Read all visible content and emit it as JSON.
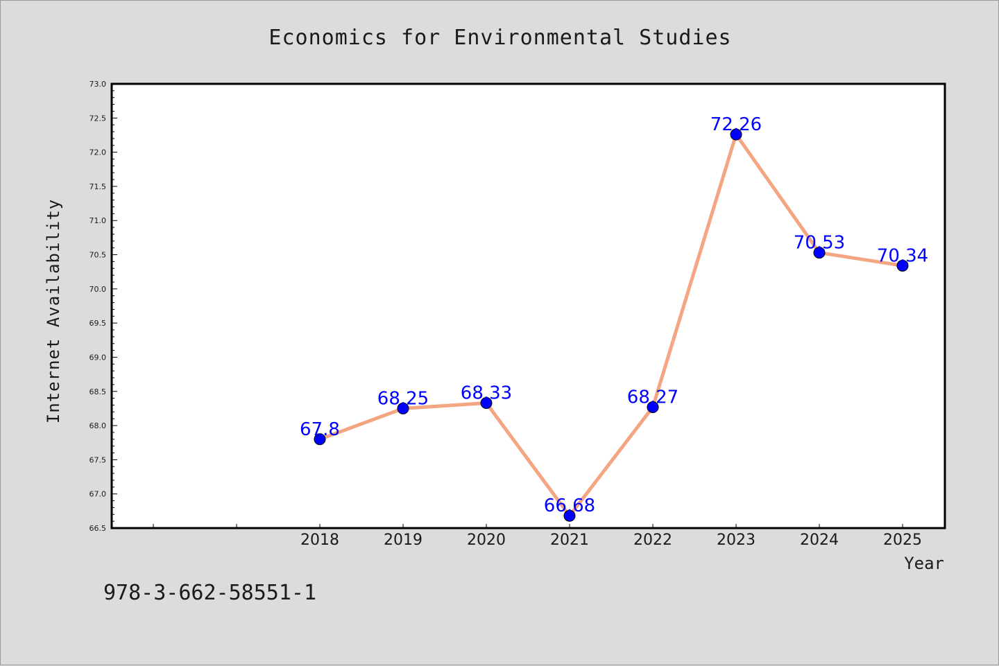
{
  "chart_data": {
    "type": "line",
    "title": "Economics for Environmental Studies",
    "xlabel": "Year",
    "ylabel": "Internet Availability",
    "x": [
      "2018",
      "2019",
      "2020",
      "2021",
      "2022",
      "2023",
      "2024",
      "2025"
    ],
    "series": [
      {
        "values": [
          67.8,
          68.25,
          68.33,
          66.68,
          68.27,
          72.26,
          70.53,
          70.34
        ],
        "labels": [
          "67.8",
          "68.25",
          "68.33",
          "66.68",
          "68.27",
          "72.26",
          "70.53",
          "70.34"
        ]
      }
    ],
    "ylim": [
      66.5,
      73.0
    ],
    "yticks": [
      "66.5",
      "67.0",
      "67.5",
      "68.0",
      "68.5",
      "69.0",
      "69.5",
      "70.0",
      "70.5",
      "71.0",
      "71.5",
      "72.0",
      "72.5",
      "73.0"
    ],
    "grid": false,
    "colors": {
      "line": "#f4a582",
      "marker": "#0000ff",
      "label": "#0000ff"
    },
    "footnote": "978-3-662-58551-1"
  }
}
